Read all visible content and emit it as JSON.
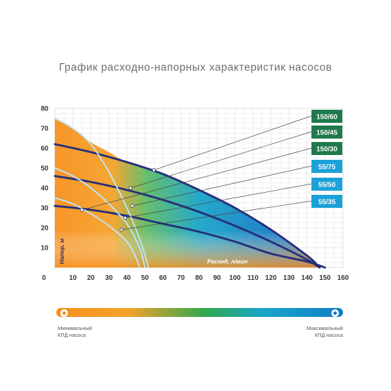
{
  "title": "График расходно-напорных характеристик насосов",
  "chart_data": {
    "type": "line",
    "title": "График расходно-напорных характеристик насосов",
    "xlabel": "Расход, л/мин",
    "ylabel": "Напор, м",
    "xlim": [
      0,
      160
    ],
    "ylim": [
      0,
      80
    ],
    "x_ticks": [
      "0",
      "10",
      "20",
      "30",
      "40",
      "50",
      "60",
      "70",
      "80",
      "90",
      "100",
      "110",
      "120",
      "130",
      "140",
      "150",
      "160"
    ],
    "y_ticks": [
      "10",
      "20",
      "30",
      "40",
      "50",
      "60",
      "70",
      "80"
    ],
    "grid": true,
    "series": [
      {
        "name": "150/60",
        "color": "#1e7a4c",
        "points": [
          [
            0,
            62
          ],
          [
            20,
            58
          ],
          [
            40,
            53
          ],
          [
            60,
            47
          ],
          [
            80,
            39
          ],
          [
            100,
            30
          ],
          [
            120,
            19
          ],
          [
            140,
            6
          ],
          [
            145,
            2
          ]
        ]
      },
      {
        "name": "150/45",
        "color": "#1e7a4c",
        "points": [
          [
            0,
            46
          ],
          [
            20,
            43
          ],
          [
            40,
            39
          ],
          [
            60,
            34
          ],
          [
            80,
            28
          ],
          [
            100,
            21
          ],
          [
            120,
            13
          ],
          [
            140,
            4
          ],
          [
            147,
            0
          ]
        ]
      },
      {
        "name": "150/30",
        "color": "#1e7a4c",
        "points": [
          [
            0,
            31
          ],
          [
            20,
            29
          ],
          [
            40,
            26
          ],
          [
            60,
            22
          ],
          [
            80,
            18
          ],
          [
            100,
            13
          ],
          [
            120,
            7
          ],
          [
            140,
            3
          ],
          [
            150,
            0
          ]
        ]
      },
      {
        "name": "55/75",
        "color": "#1ba1d8",
        "points": [
          [
            0,
            75
          ],
          [
            10,
            70
          ],
          [
            20,
            62
          ],
          [
            30,
            48
          ],
          [
            40,
            30
          ],
          [
            48,
            12
          ],
          [
            52,
            0
          ]
        ]
      },
      {
        "name": "55/50",
        "color": "#1ba1d8",
        "points": [
          [
            0,
            50
          ],
          [
            10,
            46
          ],
          [
            20,
            40
          ],
          [
            30,
            32
          ],
          [
            40,
            22
          ],
          [
            47,
            10
          ],
          [
            50,
            0
          ]
        ]
      },
      {
        "name": "55/35",
        "color": "#1ba1d8",
        "points": [
          [
            0,
            35
          ],
          [
            10,
            32
          ],
          [
            20,
            27
          ],
          [
            30,
            21
          ],
          [
            40,
            13
          ],
          [
            45,
            5
          ],
          [
            47,
            0
          ]
        ]
      }
    ],
    "series_points": [
      {
        "series": "150/60",
        "x": 55,
        "y": 49
      },
      {
        "series": "150/45",
        "x": 42,
        "y": 40
      },
      {
        "series": "150/30",
        "x": 15,
        "y": 29
      },
      {
        "series": "55/75",
        "x": 43,
        "y": 31
      },
      {
        "series": "55/50",
        "x": 39,
        "y": 25
      },
      {
        "series": "55/35",
        "x": 37,
        "y": 19
      }
    ],
    "efficiency_scale": {
      "min_label": "Минимальный КПД насоса",
      "max_label": "Максимальный КПД насоса",
      "colors": [
        "#f7901e",
        "#2fa84f",
        "#1aa5c8",
        "#0f7fc7"
      ]
    }
  },
  "legend": {
    "min_line1": "Минимальный",
    "min_line2": "КПД насоса",
    "max_line1": "Максимальный",
    "max_line2": "КПД насоса"
  }
}
